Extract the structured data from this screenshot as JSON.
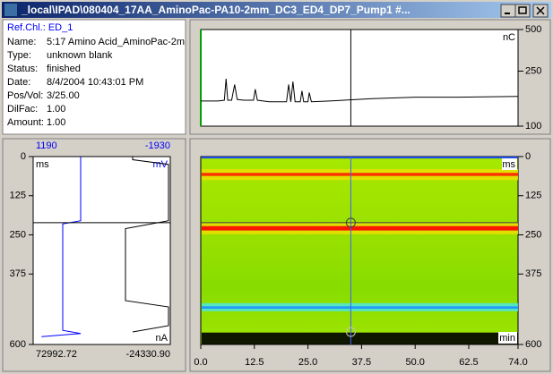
{
  "window": {
    "title": "_local\\IPAD\\080404_17AA_AminoPac-PA10-2mm_DC3_ED4_DP7_Pump1 #..."
  },
  "info": {
    "ref_channel": "Ref.Chl.: ED_1",
    "fields": [
      [
        "Name:",
        "5:17 Amino Acid_AminoPac-2m"
      ],
      [
        "Type:",
        "unknown blank"
      ],
      [
        "Status:",
        "finished"
      ],
      [
        "Date:",
        "8/4/2004 10:43:01 PM"
      ],
      [
        "Pos/Vol:",
        "3/25.00"
      ],
      [
        "DilFac:",
        "1.00"
      ],
      [
        "Amount:",
        "1.00"
      ]
    ]
  },
  "chart_data": [
    {
      "type": "line",
      "y_unit": "nC",
      "color": "#000000",
      "log_y": true,
      "x": [
        0,
        4,
        5.5,
        5.9,
        6.3,
        7.2,
        7.9,
        8.5,
        10,
        12.3,
        12.7,
        13.2,
        16,
        20,
        20.5,
        21,
        21.5,
        22,
        23.2,
        23.6,
        24,
        25,
        25.3,
        25.8,
        30,
        40,
        50,
        60,
        74
      ],
      "values": [
        152,
        152,
        154,
        220,
        154,
        154,
        200,
        156,
        154,
        154,
        185,
        154,
        150,
        150,
        200,
        150,
        210,
        150,
        150,
        180,
        150,
        150,
        175,
        150,
        152,
        158,
        162,
        162,
        164
      ],
      "xlim": [
        0,
        74
      ],
      "ylim": [
        100,
        500
      ],
      "yticks": [
        500,
        250,
        100
      ],
      "cursor_x": 35
    },
    {
      "type": "profile",
      "y_unit": "ms",
      "ylim": [
        0,
        600
      ],
      "y_reversed": true,
      "yticks": [
        0,
        125,
        250,
        375,
        600
      ],
      "cursor_y": 211,
      "series": [
        {
          "x_unit": "mV",
          "color": "#0000ff",
          "xlim": [
            1190,
            -1930
          ],
          "xticks": [
            1190,
            -1930
          ],
          "x": [
            109,
            109,
            517,
            517,
            109,
            1000
          ],
          "values": [
            0,
            205,
            215,
            555,
            565,
            575
          ]
        },
        {
          "x_unit": "nA",
          "color": "#000000",
          "xlim": [
            72992.72,
            -24330.9
          ],
          "xticks": [
            {
              "value": 72992.72,
              "label": "72992.72"
            },
            {
              "value": -24330.9,
              "label": "-24330.90"
            }
          ],
          "x": [
            2386,
            2386,
            -23058,
            -23058,
            7476,
            7476,
            -23058,
            -23058,
            2386
          ],
          "values": [
            0,
            10,
            25,
            205,
            230,
            460,
            480,
            540,
            560
          ]
        }
      ]
    },
    {
      "type": "heatmap",
      "x_unit": "min",
      "y_unit": "ms",
      "xlim": [
        0,
        74
      ],
      "ylim": [
        0,
        600
      ],
      "y_reversed": true,
      "xticks": [
        {
          "value": 0,
          "label": "0.0"
        },
        12.5,
        {
          "value": 25,
          "label": "25.0"
        },
        37.5,
        {
          "value": 50,
          "label": "50.0"
        },
        62.5,
        {
          "value": 74,
          "label": "74.0"
        }
      ],
      "yticks": [
        0,
        125,
        250,
        375,
        600
      ],
      "cursor": [
        35,
        211
      ],
      "cursor2_y": 560,
      "bands": [
        {
          "start": 0,
          "end": 6,
          "color": "#1040ff"
        },
        {
          "start": 40,
          "end": 75,
          "color": "#e8e000"
        },
        {
          "start": 52,
          "end": 62,
          "color": "#ff2000"
        },
        {
          "start": 212,
          "end": 248,
          "color": "#e8e000"
        },
        {
          "start": 222,
          "end": 236,
          "color": "#ff0000"
        },
        {
          "start": 468,
          "end": 494,
          "color": "#50e8d0"
        },
        {
          "start": 478,
          "end": 486,
          "color": "#2090ff"
        },
        {
          "start": 562,
          "end": 600,
          "color": "#000000"
        }
      ]
    }
  ]
}
